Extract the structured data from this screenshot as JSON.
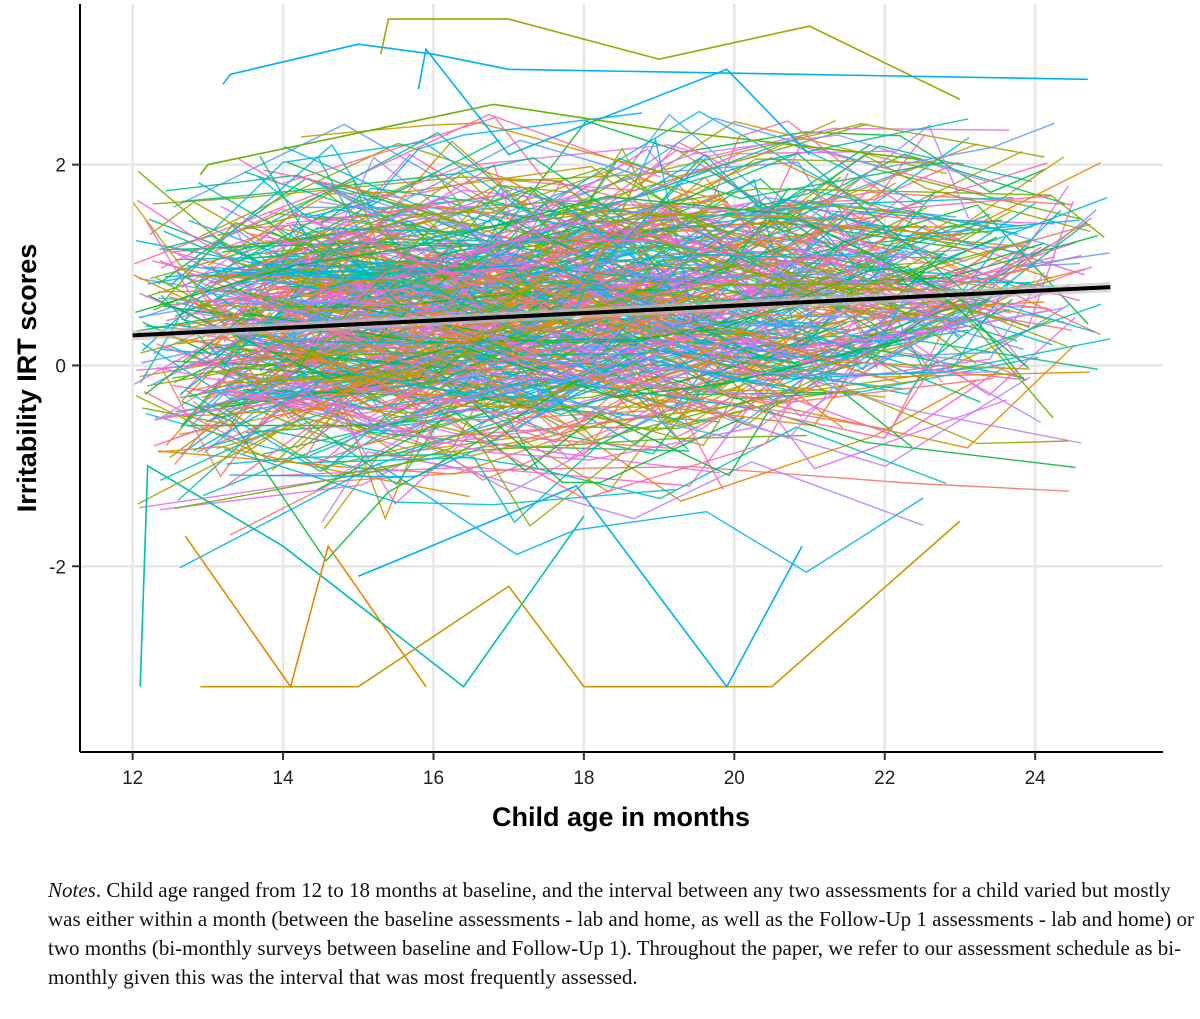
{
  "chart_data": {
    "type": "line",
    "xlabel": "Child age in months",
    "ylabel": "Irritability IRT scores",
    "xlim": [
      11.3,
      25.7
    ],
    "ylim": [
      -3.85,
      3.6
    ],
    "xticks": [
      "12",
      "14",
      "16",
      "18",
      "20",
      "22",
      "24"
    ],
    "yticks": [
      "-2",
      "0",
      "2"
    ],
    "grid": true,
    "legend": "none",
    "fit_line": {
      "x": [
        12.0,
        25.0
      ],
      "y": [
        0.3,
        0.78
      ],
      "color": "#000000"
    },
    "series_palette": [
      "#F8766D",
      "#E58700",
      "#C99800",
      "#A3A500",
      "#6BB100",
      "#00BA38",
      "#00BF7D",
      "#00C0AF",
      "#00BCD8",
      "#00B0F6",
      "#619CFF",
      "#B983FF",
      "#E76BF3",
      "#FD61D1",
      "#FF67A4"
    ],
    "highlighted_series": [
      {
        "color": "#A3A500",
        "x": [
          15.3,
          15.4,
          17.0,
          19.0,
          21.0,
          23.0
        ],
        "y": [
          3.1,
          3.45,
          3.45,
          3.05,
          3.38,
          2.65
        ]
      },
      {
        "color": "#00B0F6",
        "x": [
          13.2,
          13.3,
          15.0,
          16.0,
          17.0,
          24.7
        ],
        "y": [
          2.8,
          2.9,
          3.2,
          3.1,
          2.95,
          2.85
        ]
      },
      {
        "color": "#00B0F6",
        "x": [
          15.8,
          15.9,
          17.0,
          19.9,
          21.0
        ],
        "y": [
          2.75,
          3.15,
          2.1,
          2.95,
          2.1
        ]
      },
      {
        "color": "#6BB100",
        "x": [
          12.9,
          13.0,
          16.8,
          19.0,
          22.5
        ],
        "y": [
          1.9,
          2.0,
          2.6,
          2.35,
          2.05
        ]
      },
      {
        "color": "#00C0AF",
        "x": [
          12.1,
          12.2,
          14.0,
          16.4,
          18.0
        ],
        "y": [
          -3.2,
          -1.0,
          -1.8,
          -3.2,
          -1.5
        ]
      },
      {
        "color": "#C99800",
        "x": [
          12.9,
          14.3,
          15.0,
          17.0,
          18.0,
          20.5,
          23.0
        ],
        "y": [
          -3.2,
          -3.2,
          -3.2,
          -2.2,
          -3.2,
          -3.2,
          -1.55
        ]
      },
      {
        "color": "#00B0F6",
        "x": [
          15.0,
          17.9,
          19.9,
          20.9
        ],
        "y": [
          -2.1,
          -1.2,
          -3.2,
          -1.8
        ]
      },
      {
        "color": "#E58700",
        "x": [
          12.7,
          14.1,
          14.6,
          15.9
        ],
        "y": [
          -1.7,
          -3.2,
          -1.8,
          -3.2
        ]
      }
    ]
  },
  "notes": {
    "label": "Notes",
    "text": ". Child age ranged from 12 to 18 months at baseline, and the interval between any two assessments for a child varied but mostly was either within a month (between the baseline assessments - lab and home, as well as the Follow-Up 1 assessments - lab and home) or two months (bi-monthly surveys between baseline and Follow-Up 1). Throughout the paper, we refer to our assessment schedule as bi-monthly given this was the interval that was most frequently assessed."
  }
}
